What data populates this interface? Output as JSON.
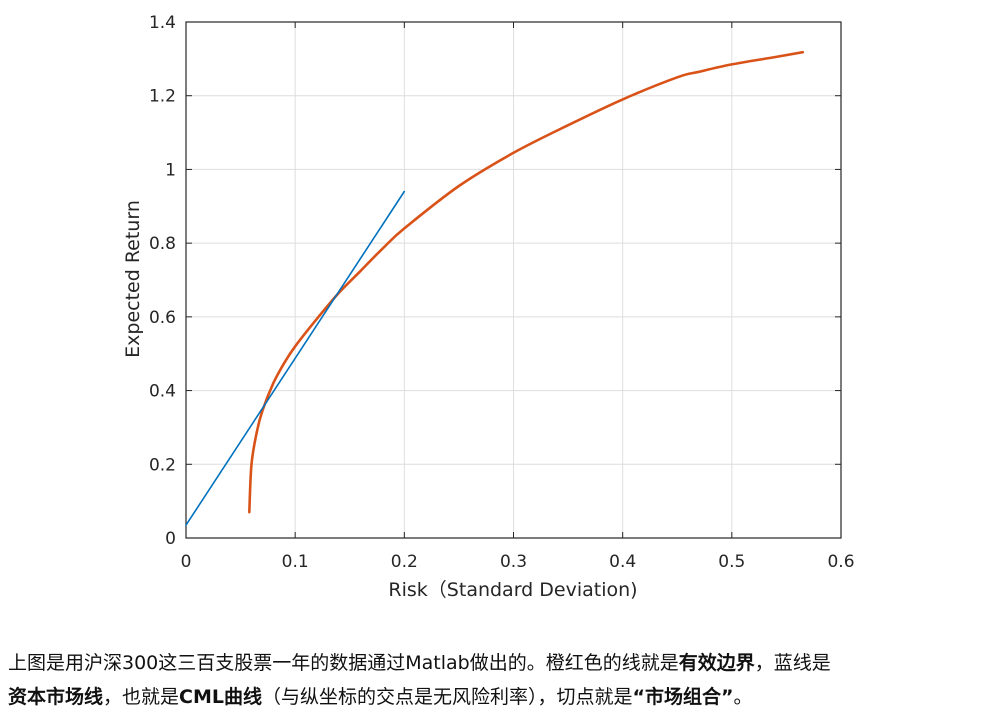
{
  "chart_data": {
    "type": "line",
    "xlabel": "Risk（Standard Deviation)",
    "ylabel": "Expected Return",
    "xlim": [
      0,
      0.6
    ],
    "ylim": [
      0,
      1.4
    ],
    "xticks": [
      "0",
      "0.1",
      "0.2",
      "0.3",
      "0.4",
      "0.5",
      "0.6"
    ],
    "yticks": [
      "0",
      "0.2",
      "0.4",
      "0.6",
      "0.8",
      "1",
      "1.2",
      "1.4"
    ],
    "grid": true,
    "series": [
      {
        "color": "#D95319",
        "x": [
          0.058,
          0.06,
          0.065,
          0.07,
          0.08,
          0.09,
          0.1,
          0.12,
          0.14,
          0.16,
          0.18,
          0.2,
          0.25,
          0.3,
          0.35,
          0.4,
          0.45,
          0.47,
          0.5,
          0.54,
          0.565
        ],
        "y": [
          0.07,
          0.2,
          0.29,
          0.345,
          0.42,
          0.475,
          0.52,
          0.595,
          0.665,
          0.725,
          0.785,
          0.84,
          0.955,
          1.045,
          1.12,
          1.19,
          1.25,
          1.265,
          1.285,
          1.305,
          1.318
        ]
      },
      {
        "color": "#0072BD",
        "x": [
          0,
          0.2
        ],
        "y": [
          0.035,
          0.94
        ]
      }
    ]
  },
  "caption": {
    "line1": [
      {
        "text": "上图是用沪深300这三百支股票一年的数据通过Matlab做出的。橙红色的线就是",
        "bold": false
      },
      {
        "text": "有效边界",
        "bold": true
      },
      {
        "text": "，蓝线是",
        "bold": false
      }
    ],
    "line2": [
      {
        "text": "资本市场线",
        "bold": true
      },
      {
        "text": "，也就是",
        "bold": false
      },
      {
        "text": "CML曲线",
        "bold": true
      },
      {
        "text": "（与纵坐标的交点是无风险利率），切点就是",
        "bold": false
      },
      {
        "text": "“市场组合”",
        "bold": true
      },
      {
        "text": "。",
        "bold": false
      }
    ]
  }
}
